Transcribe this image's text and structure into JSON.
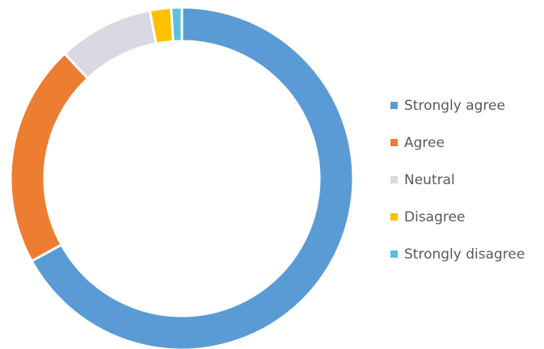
{
  "chart_data": {
    "type": "pie",
    "subtype": "donut",
    "title": "",
    "categories": [
      "Strongly agree",
      "Agree",
      "Neutral",
      "Disagree",
      "Strongly disagree"
    ],
    "values": [
      67,
      21,
      9,
      2,
      1
    ],
    "value_unit": "%",
    "colors": [
      "#5b9bd5",
      "#ed7d31",
      "#d9d9e3",
      "#ffc000",
      "#5bc0de"
    ],
    "legend_position": "right",
    "start_angle": "top",
    "direction": "clockwise"
  }
}
